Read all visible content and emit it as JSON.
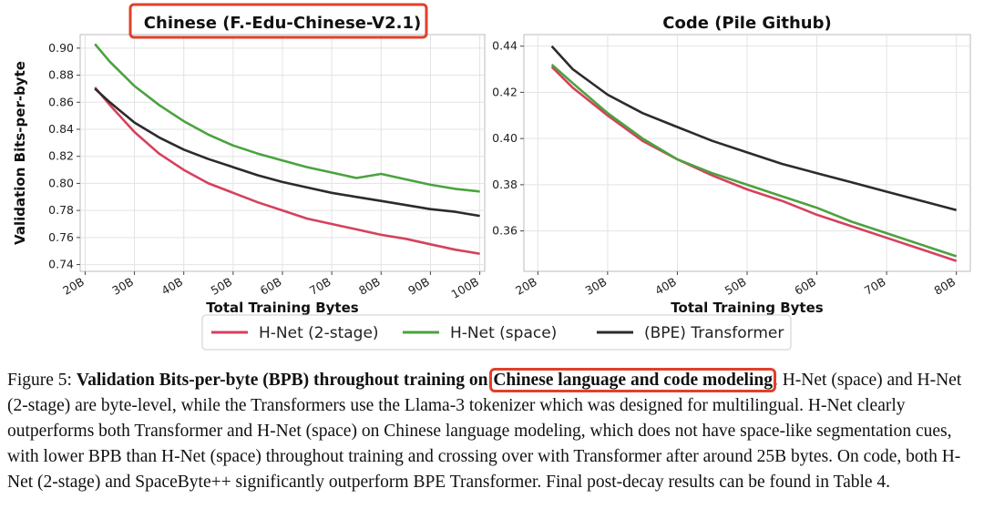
{
  "chart_data": [
    {
      "type": "line",
      "title": "Chinese (F.-Edu-Chinese-V2.1)",
      "y_label": "Validation Bits-per-byte",
      "x_label": "Total Training Bytes",
      "x": [
        22,
        25,
        30,
        35,
        40,
        45,
        50,
        55,
        60,
        65,
        70,
        75,
        80,
        85,
        90,
        95,
        100
      ],
      "series": [
        {
          "name": "H-Net (2-stage)",
          "color": "#d6405e",
          "values": [
            0.871,
            0.858,
            0.838,
            0.822,
            0.81,
            0.8,
            0.793,
            0.786,
            0.78,
            0.774,
            0.77,
            0.766,
            0.762,
            0.759,
            0.755,
            0.751,
            0.748
          ]
        },
        {
          "name": "H-Net (space)",
          "color": "#4aa33e",
          "values": [
            0.903,
            0.89,
            0.872,
            0.858,
            0.846,
            0.836,
            0.828,
            0.822,
            0.817,
            0.812,
            0.808,
            0.804,
            0.807,
            0.803,
            0.799,
            0.796,
            0.794
          ]
        },
        {
          "name": "(BPE) Transformer",
          "color": "#2b2b2b",
          "values": [
            0.87,
            0.86,
            0.845,
            0.834,
            0.825,
            0.818,
            0.812,
            0.806,
            0.801,
            0.797,
            0.793,
            0.79,
            0.787,
            0.784,
            0.781,
            0.779,
            0.776
          ]
        }
      ],
      "xlim": [
        19,
        101
      ],
      "ylim": [
        0.735,
        0.91
      ],
      "xticks": [
        {
          "value": 20,
          "label": "20B"
        },
        {
          "value": 30,
          "label": "30B"
        },
        {
          "value": 40,
          "label": "40B"
        },
        {
          "value": 50,
          "label": "50B"
        },
        {
          "value": 60,
          "label": "60B"
        },
        {
          "value": 70,
          "label": "70B"
        },
        {
          "value": 80,
          "label": "80B"
        },
        {
          "value": 90,
          "label": "90B"
        },
        {
          "value": 100,
          "label": "100B"
        }
      ],
      "yticks": [
        {
          "value": 0.74,
          "label": "0.74"
        },
        {
          "value": 0.76,
          "label": "0.76"
        },
        {
          "value": 0.78,
          "label": "0.78"
        },
        {
          "value": 0.8,
          "label": "0.80"
        },
        {
          "value": 0.82,
          "label": "0.82"
        },
        {
          "value": 0.84,
          "label": "0.84"
        },
        {
          "value": 0.86,
          "label": "0.86"
        },
        {
          "value": 0.88,
          "label": "0.88"
        },
        {
          "value": 0.9,
          "label": "0.90"
        }
      ],
      "grid": true
    },
    {
      "type": "line",
      "title": "Code (Pile Github)",
      "x_label": "Total Training Bytes",
      "x": [
        22,
        25,
        30,
        35,
        40,
        45,
        50,
        55,
        60,
        65,
        70,
        75,
        80
      ],
      "series": [
        {
          "color": "#d6405e",
          "values": [
            0.431,
            0.422,
            0.41,
            0.399,
            0.391,
            0.384,
            0.378,
            0.373,
            0.367,
            0.362,
            0.357,
            0.352,
            0.347
          ]
        },
        {
          "color": "#4aa33e",
          "values": [
            0.432,
            0.424,
            0.411,
            0.4,
            0.391,
            0.385,
            0.38,
            0.375,
            0.37,
            0.364,
            0.359,
            0.354,
            0.349
          ]
        },
        {
          "color": "#2b2b2b",
          "values": [
            0.44,
            0.43,
            0.419,
            0.411,
            0.405,
            0.399,
            0.394,
            0.389,
            0.385,
            0.381,
            0.377,
            0.373,
            0.369
          ]
        }
      ],
      "xlim": [
        18,
        82
      ],
      "ylim": [
        0.3425,
        0.445
      ],
      "xticks": [
        {
          "value": 20,
          "label": "20B"
        },
        {
          "value": 30,
          "label": "30B"
        },
        {
          "value": 40,
          "label": "40B"
        },
        {
          "value": 50,
          "label": "50B"
        },
        {
          "value": 60,
          "label": "60B"
        },
        {
          "value": 70,
          "label": "70B"
        },
        {
          "value": 80,
          "label": "80B"
        }
      ],
      "yticks": [
        {
          "value": 0.36,
          "label": "0.36"
        },
        {
          "value": 0.38,
          "label": "0.38"
        },
        {
          "value": 0.4,
          "label": "0.40"
        },
        {
          "value": 0.42,
          "label": "0.42"
        },
        {
          "value": 0.44,
          "label": "0.44"
        }
      ],
      "grid": true
    }
  ],
  "caption": {
    "label": "Figure 5: ",
    "bold": "Validation Bits-per-byte (BPB) throughout training on ",
    "highlight": "Chinese language and code modeling",
    "rest": ". H-Net (space) and H-Net (2-stage) are byte-level, while the Transformers use the Llama-3 tokenizer which was designed for multilingual.  H-Net clearly outperforms both Transformer and H-Net (space) on Chinese language modeling, which does not have space-like segmentation cues, with lower BPB than H-Net (space) throughout training and crossing over with Transformer after around 25B bytes. On code, both H-Net (2-stage) and SpaceByte++ significantly outperform BPE Transformer. Final post-decay results can be found in Table 4."
  }
}
